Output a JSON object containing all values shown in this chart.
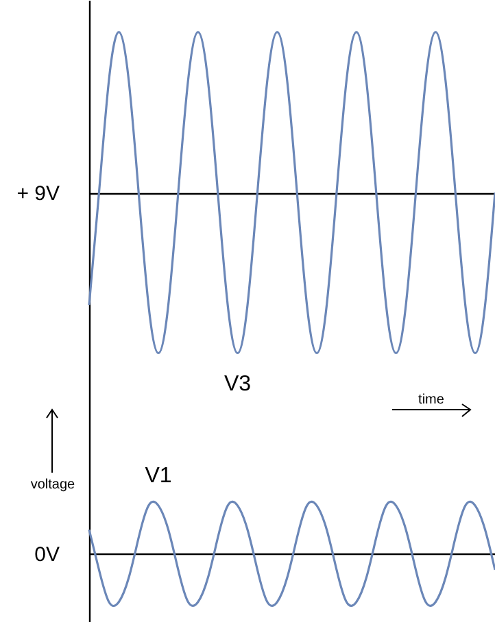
{
  "chart_data": {
    "type": "line",
    "xlabel": "time",
    "ylabel": "voltage",
    "categories": [
      null,
      null,
      null,
      null,
      null,
      null,
      null,
      null,
      null,
      null,
      null,
      null,
      null,
      null,
      null,
      null,
      null,
      null,
      null,
      null,
      null,
      null,
      null,
      null,
      null,
      null,
      null,
      null,
      null,
      null,
      null,
      null,
      null,
      null,
      null,
      null,
      null,
      null,
      null,
      null,
      null,
      null
    ],
    "series": [
      {
        "name": "V3",
        "color": "#6b87b8",
        "values": [
          6.2,
          9,
          11.8,
          13,
          11.8,
          9,
          6.2,
          5,
          6.2,
          9,
          11.8,
          13,
          11.8,
          9,
          6.2,
          5,
          6.2,
          9,
          11.8,
          13,
          11.8,
          9,
          6.2,
          5,
          6.2,
          9,
          11.8,
          13,
          11.8,
          9,
          6.2,
          5,
          6.2,
          9,
          11.8,
          13,
          11.8,
          9,
          6.2,
          5,
          6.2,
          9
        ]
      },
      {
        "name": "V1",
        "color": "#6b87b8",
        "values": [
          0.6,
          -0.4,
          -1.2,
          -1.2,
          -0.6,
          0.4,
          1.2,
          1.2,
          0.6,
          -0.4,
          -1.2,
          -1.2,
          -0.6,
          0.4,
          1.2,
          1.2,
          0.6,
          -0.4,
          -1.2,
          -1.2,
          -0.6,
          0.4,
          1.2,
          1.2,
          0.6,
          -0.4,
          -1.2,
          -1.2,
          -0.6,
          0.4,
          1.2,
          1.2,
          0.6,
          -0.4,
          -1.2,
          -1.2,
          -0.6,
          0.4,
          1.2,
          1.2,
          0.6,
          -0.4
        ]
      }
    ],
    "ylim": [
      -1.7,
      13.8
    ],
    "yticks": [
      {
        "value": 0,
        "label": "0V"
      },
      {
        "value": 9,
        "label": "+ 9V"
      }
    ],
    "grid": "y",
    "marker": "none",
    "line_style": "solid",
    "tick_labels": "y"
  }
}
